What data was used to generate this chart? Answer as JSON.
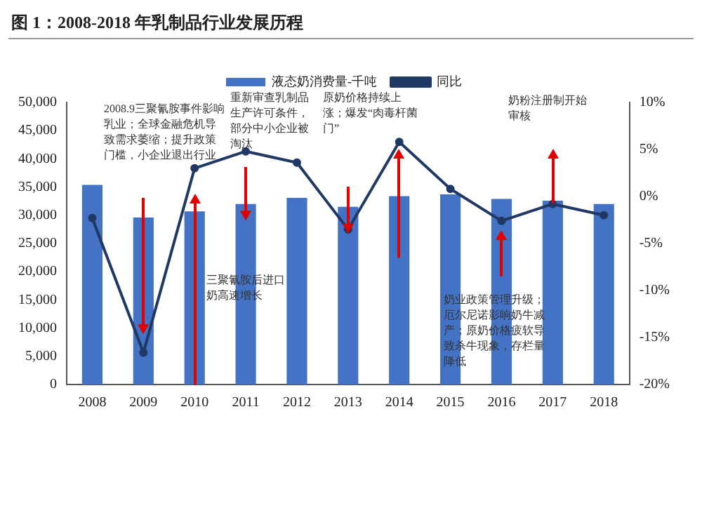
{
  "chart_data": {
    "type": "bar",
    "title": "图 1：2008-2018 年乳制品行业发展历程",
    "categories": [
      "2008",
      "2009",
      "2010",
      "2011",
      "2012",
      "2013",
      "2014",
      "2015",
      "2016",
      "2017",
      "2018"
    ],
    "series": [
      {
        "name": "液态奶消费量-千吨",
        "color": "#4472c4",
        "values": [
          35400,
          29600,
          30700,
          32000,
          33100,
          31500,
          33400,
          33700,
          32900,
          32600,
          32000
        ]
      },
      {
        "name": "同比",
        "type": "line",
        "axis": "y2",
        "color": "#1f3864",
        "values": [
          -2.3,
          -16.6,
          3.0,
          4.8,
          3.6,
          -3.5,
          5.8,
          0.8,
          -2.6,
          -0.8,
          -2.0
        ]
      }
    ],
    "ylim": [
      0,
      50000
    ],
    "yticks": [
      0,
      {
        "value": 5000,
        "label": "5,000"
      },
      {
        "value": 10000,
        "label": "10,000"
      },
      {
        "value": 15000,
        "label": "15,000"
      },
      {
        "value": 20000,
        "label": "20,000"
      },
      {
        "value": 25000,
        "label": "25,000"
      },
      {
        "value": 30000,
        "label": "30,000"
      },
      {
        "value": 35000,
        "label": "35,000"
      },
      {
        "value": 40000,
        "label": "40,000"
      },
      {
        "value": 45000,
        "label": "45,000"
      },
      {
        "value": 50000,
        "label": "50,000"
      }
    ],
    "y2lim": [
      -20,
      10
    ],
    "y2ticks": [
      {
        "value": -20,
        "label": "-20%"
      },
      {
        "value": -15,
        "label": "-15%"
      },
      {
        "value": -10,
        "label": "-10%"
      },
      {
        "value": -5,
        "label": "-5%"
      },
      {
        "value": 0,
        "label": "0%"
      },
      {
        "value": 5,
        "label": "5%"
      },
      {
        "value": 10,
        "label": "10%"
      }
    ],
    "grid": false,
    "legend": "top",
    "marker": "circle",
    "line_style": "solid",
    "annotations": [
      "2008.9三聚氰胺事件影响乳业；全球金融危机导致需求萎缩；提升政策门槛，小企业退出行业",
      "重新审查乳制品生产许可条件，部分中小企业被淘汰",
      "原奶价格持续上涨；爆发“肉毒杆菌门”",
      "三聚氰胺后进口奶高速增长",
      "奶业政策管理升级；厄尔尼诺影响奶牛减产；原奶价格疲软导致杀牛现象，存栏量降低",
      "奶粉注册制开始审核"
    ]
  }
}
